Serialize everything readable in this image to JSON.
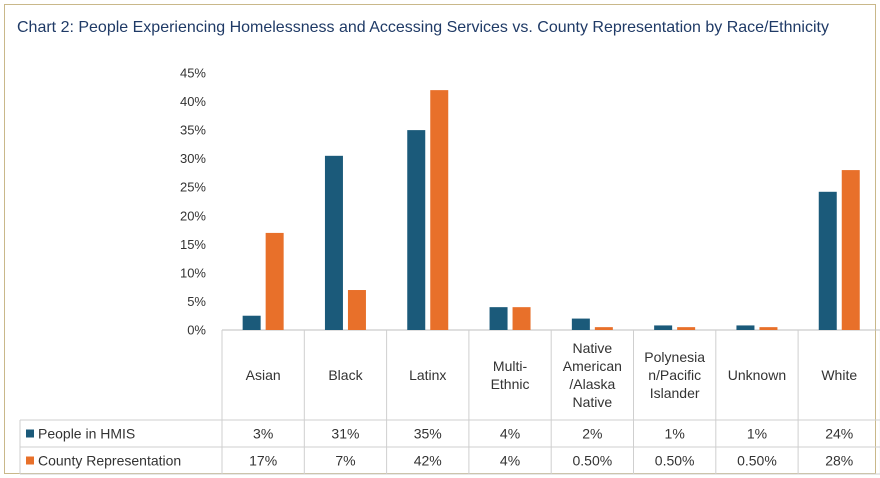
{
  "chart_data": {
    "type": "bar",
    "title": "Chart 2: People Experiencing Homelessness and Accessing Services vs. County Representation by Race/Ethnicity",
    "categories": [
      [
        "Asian"
      ],
      [
        "Black"
      ],
      [
        "Latinx"
      ],
      [
        "Multi-",
        "Ethnic"
      ],
      [
        "Native",
        "American",
        "/Alaska",
        "Native"
      ],
      [
        "Polynesia",
        "n/Pacific",
        "Islander"
      ],
      [
        "Unknown"
      ],
      [
        "White"
      ]
    ],
    "yticks": [
      "0%",
      "5%",
      "10%",
      "15%",
      "20%",
      "25%",
      "30%",
      "35%",
      "40%",
      "45%"
    ],
    "ylim": [
      0,
      45
    ],
    "series": [
      {
        "name": "People in HMIS",
        "color": "#1b5a7a",
        "values": [
          2.5,
          30.5,
          35,
          4,
          2,
          0.8,
          0.8,
          24.2
        ],
        "table_labels": [
          "3%",
          "31%",
          "35%",
          "4%",
          "2%",
          "1%",
          "1%",
          "24%"
        ]
      },
      {
        "name": "County Representation",
        "color": "#e8702a",
        "values": [
          17,
          7,
          42,
          4,
          0.5,
          0.5,
          0.5,
          28
        ],
        "table_labels": [
          "17%",
          "7%",
          "42%",
          "4%",
          "0.50%",
          "0.50%",
          "0.50%",
          "28%"
        ]
      }
    ],
    "legend": "data-table",
    "grid": false
  }
}
